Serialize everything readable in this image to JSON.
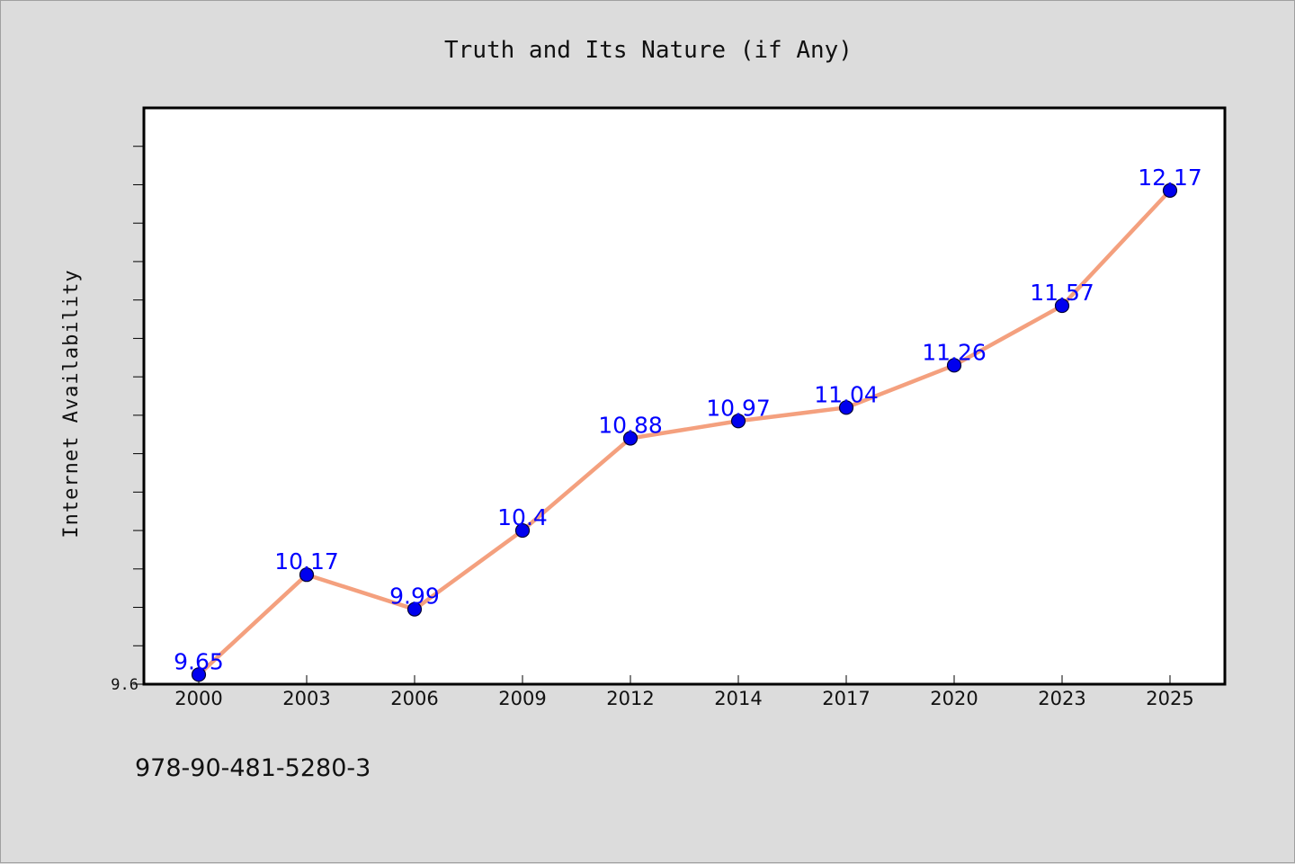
{
  "chart_data": {
    "type": "line",
    "title": "Truth and Its Nature (if Any)",
    "xlabel": "",
    "ylabel": "Internet Availability",
    "categories": [
      "2000",
      "2003",
      "2006",
      "2009",
      "2012",
      "2014",
      "2017",
      "2020",
      "2023",
      "2025"
    ],
    "series": [
      {
        "values": [
          9.65,
          10.17,
          9.99,
          10.4,
          10.88,
          10.97,
          11.04,
          11.26,
          11.57,
          12.17
        ],
        "data_labels": [
          "9.65",
          "10.17",
          "9.99",
          "10.4",
          "10.88",
          "10.97",
          "11.04",
          "11.26",
          "11.57",
          "12.17"
        ]
      }
    ],
    "ylim": [
      9.6,
      12.6
    ],
    "yticks_labeled": [
      {
        "value": 9.6,
        "label": "9.6"
      }
    ],
    "minor_tick_step": 0.2,
    "grid": false,
    "legend": "none",
    "colors": {
      "line": "#f4a07e",
      "marker": "#0000ee",
      "marker_edge": "#000033",
      "data_label": "#0000ff",
      "plot_background": "#ffffff",
      "figure_background": "#dcdcdc"
    }
  },
  "footer": {
    "isbn": "978-90-481-5280-3"
  }
}
